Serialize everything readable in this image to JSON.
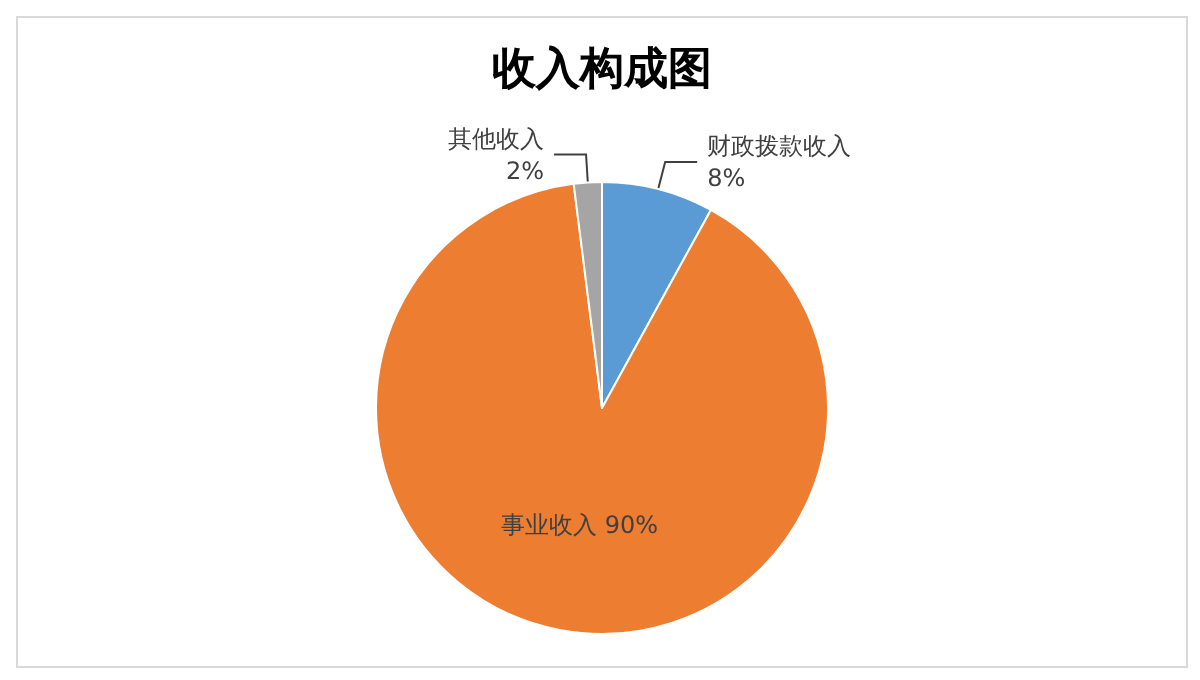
{
  "chart_data": {
    "type": "pie",
    "title": "收入构成图",
    "categories": [
      "财政拨款收入",
      "事业收入",
      "其他收入"
    ],
    "values": [
      8,
      90,
      2
    ],
    "colors": [
      "#5b9bd5",
      "#ed7d31",
      "#a5a5a5"
    ],
    "value_labels": [
      "8%",
      "90%",
      "2%"
    ],
    "legend": false
  }
}
